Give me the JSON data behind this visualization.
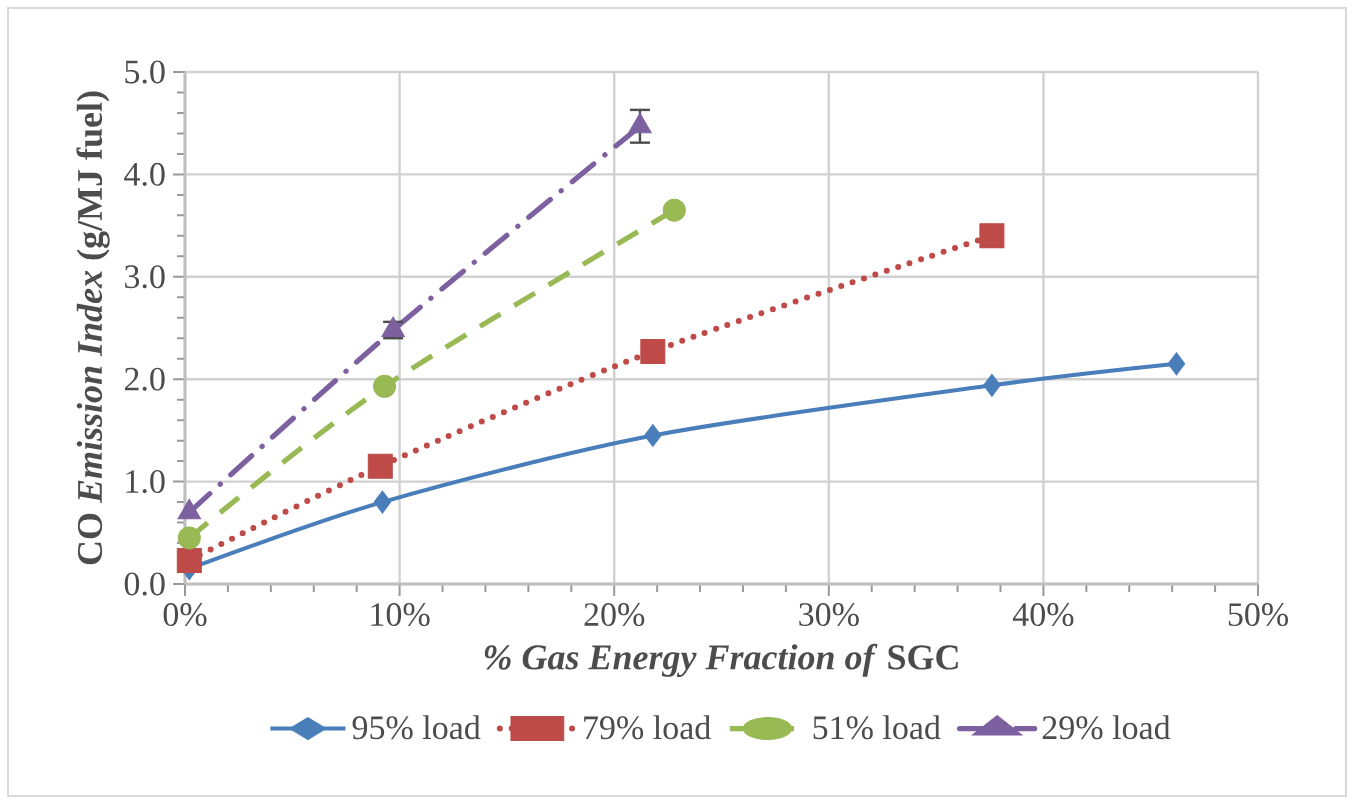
{
  "chart_data": {
    "type": "line",
    "xlabel": "*% Gas Energy Fraction of* SGC",
    "ylabel": "CO *Emission Index* (g/MJ fuel)",
    "xlim": [
      0,
      50
    ],
    "ylim": [
      0,
      5
    ],
    "xticks": [
      {
        "value": 0,
        "label": "0%"
      },
      {
        "value": 10,
        "label": "10%"
      },
      {
        "value": 20,
        "label": "20%"
      },
      {
        "value": 30,
        "label": "30%"
      },
      {
        "value": 40,
        "label": "40%"
      },
      {
        "value": 50,
        "label": "50%"
      }
    ],
    "yticks": [
      {
        "value": 0,
        "label": "0.0"
      },
      {
        "value": 1,
        "label": "1.0"
      },
      {
        "value": 2,
        "label": "2.0"
      },
      {
        "value": 3,
        "label": "3.0"
      },
      {
        "value": 4,
        "label": "4.0"
      },
      {
        "value": 5,
        "label": "5.0"
      }
    ],
    "grid": true,
    "legend": "bottom",
    "series": [
      {
        "name": "95% load",
        "color": "#4a7ebb",
        "marker": "diamond",
        "line_style": "solid",
        "x": [
          0.2,
          9.2,
          21.8,
          37.6,
          46.2
        ],
        "values": [
          0.15,
          0.8,
          1.45,
          1.94,
          2.15
        ]
      },
      {
        "name": "79% load",
        "color": "#be4b48",
        "marker": "square",
        "line_style": "dotted",
        "x": [
          0.2,
          9.1,
          21.8,
          37.6
        ],
        "values": [
          0.23,
          1.15,
          2.27,
          3.4
        ]
      },
      {
        "name": "51% load",
        "color": "#98b954",
        "marker": "circle",
        "line_style": "dashed",
        "x": [
          0.2,
          9.3,
          22.8
        ],
        "values": [
          0.45,
          1.93,
          3.65
        ]
      },
      {
        "name": "29% load",
        "color": "#7d60a0",
        "marker": "triangle",
        "line_style": "dashdot",
        "x": [
          0.2,
          9.7,
          21.2
        ],
        "values": [
          0.7,
          2.48,
          4.47
        ],
        "errors": [
          null,
          0.08,
          0.16
        ]
      }
    ]
  }
}
